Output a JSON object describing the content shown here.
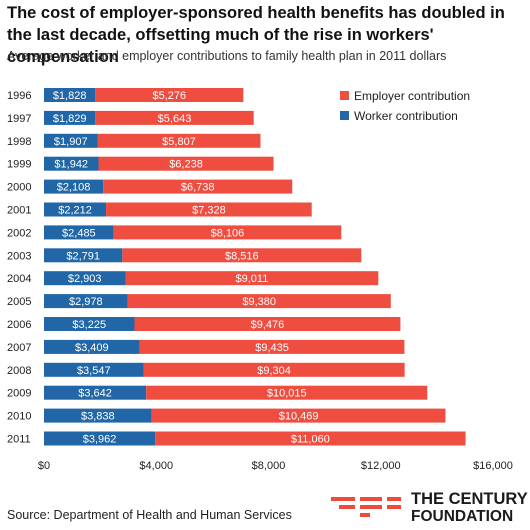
{
  "title": "The cost of employer-sponsored health benefits has doubled in the last decade, offsetting much of the rise in workers' compensation",
  "subtitle": "Average worker and employer contributions to family health plan in 2011 dollars",
  "source": "Source: Department of Health and Human Services",
  "logo": {
    "line1": "THE CENTURY",
    "line2": "FOUNDATION"
  },
  "colors": {
    "worker": "#2166a6",
    "employer": "#ee4d3f"
  },
  "chart_data": {
    "type": "bar",
    "orientation": "horizontal",
    "stacked": true,
    "categories": [
      "1996",
      "1997",
      "1998",
      "1999",
      "2000",
      "2001",
      "2002",
      "2003",
      "2004",
      "2005",
      "2006",
      "2007",
      "2008",
      "2009",
      "2010",
      "2011"
    ],
    "series": [
      {
        "name": "Worker contribution",
        "values": [
          1828,
          1829,
          1907,
          1942,
          2108,
          2212,
          2485,
          2791,
          2903,
          2978,
          3225,
          3409,
          3547,
          3642,
          3838,
          3962
        ],
        "labels": [
          "$1,828",
          "$1,829",
          "$1,907",
          "$1,942",
          "$2,108",
          "$2,212",
          "$2,485",
          "$2,791",
          "$2,903",
          "$2,978",
          "$3,225",
          "$3,409",
          "$3,547",
          "$3,642",
          "$3,838",
          "$3,962"
        ]
      },
      {
        "name": "Employer contribution",
        "values": [
          5276,
          5643,
          5807,
          6238,
          6738,
          7328,
          8106,
          8516,
          9011,
          9380,
          9476,
          9435,
          9304,
          10015,
          10469,
          11060
        ],
        "labels": [
          "$5,276",
          "$5,643",
          "$5,807",
          "$6,238",
          "$6,738",
          "$7,328",
          "$8,106",
          "$8,516",
          "$9,011",
          "$9,380",
          "$9,476",
          "$9,435",
          "$9,304",
          "$10,015",
          "$10,469",
          "$11,060"
        ]
      }
    ],
    "xlim": [
      0,
      16000
    ],
    "xticks": [
      0,
      4000,
      8000,
      12000,
      16000
    ],
    "xtick_labels": [
      "$0",
      "$4,000",
      "$8,000",
      "$12,000",
      "$16,000"
    ],
    "legend_position": "top-right",
    "legend_order": [
      "Employer contribution",
      "Worker contribution"
    ],
    "grid": false
  }
}
